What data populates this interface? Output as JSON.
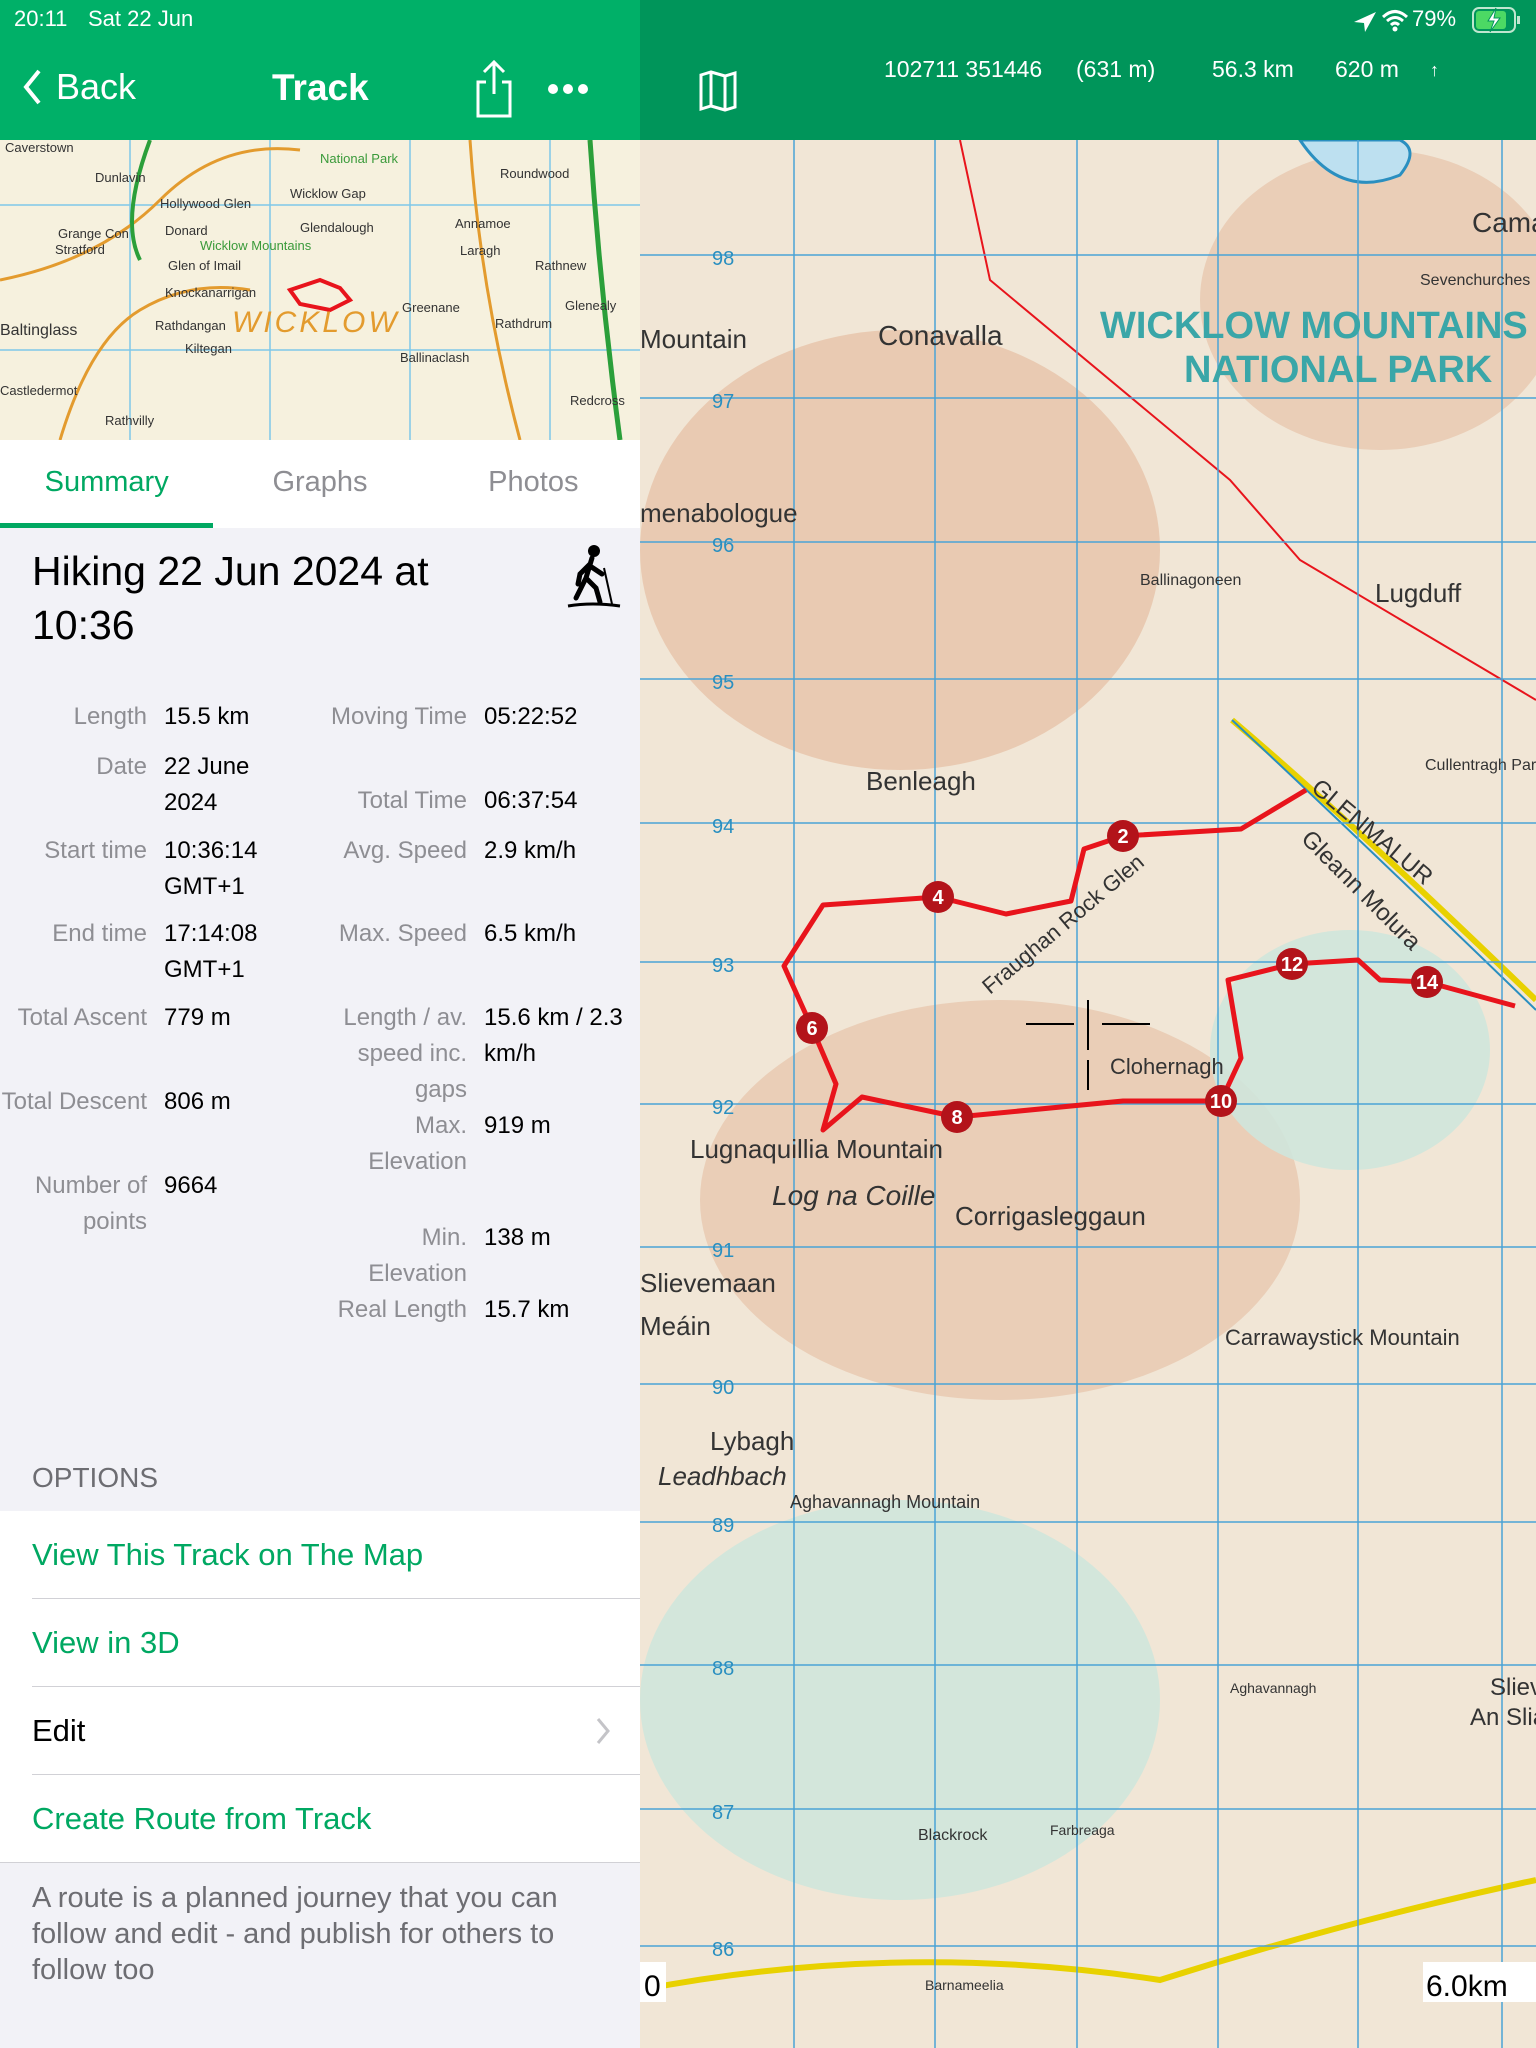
{
  "status": {
    "time": "20:11",
    "date": "Sat 22 Jun",
    "battery": "79%"
  },
  "nav": {
    "back": "Back",
    "title": "Track"
  },
  "map_header": {
    "coords": "102711 351446",
    "coords_elev": "(631 m)",
    "distance": "56.3 km",
    "elevation": "620 m"
  },
  "minimap": {
    "labels": [
      "Caverstown",
      "Dunlavin",
      "Hollywood Glen",
      "Donard",
      "Glen of Imail",
      "Knockanarrigan",
      "Stratford",
      "Grange Con",
      "Baltinglass",
      "Rathdangan",
      "Kiltegan",
      "Castledermot",
      "Rathvilly",
      "Wicklow Gap",
      "Glendalough",
      "Laragh",
      "Annamoe",
      "Roundwood",
      "Rathnew",
      "Glenealy",
      "Rathdrum",
      "Greenane",
      "Ballinaclash",
      "Redcross",
      "WICKLOW",
      "Wicklow Mountains",
      "National Park"
    ]
  },
  "tabs": [
    {
      "label": "Summary",
      "active": true
    },
    {
      "label": "Graphs",
      "active": false
    },
    {
      "label": "Photos",
      "active": false
    }
  ],
  "track": {
    "title": "Hiking 22 Jun 2024 at 10:36",
    "activity_icon": "hiking-icon"
  },
  "stats_left": [
    {
      "label": "Length",
      "value": "15.5 km"
    },
    {
      "label": "Date",
      "value": "22 June 2024"
    },
    {
      "label": "Start time",
      "value": "10:36:14 GMT+1"
    },
    {
      "label": "End time",
      "value": "17:14:08 GMT+1"
    },
    {
      "label": "Total Ascent",
      "value": "779 m"
    },
    {
      "label": "Total Descent",
      "value": "806 m"
    },
    {
      "label": "Number of points",
      "value": "9664"
    }
  ],
  "stats_right": [
    {
      "label": "Moving Time",
      "value": "05:22:52"
    },
    {
      "label": "Total Time",
      "value": "06:37:54"
    },
    {
      "label": "Avg. Speed",
      "value": "2.9 km/h"
    },
    {
      "label": "Max. Speed",
      "value": "6.5 km/h"
    },
    {
      "label": "Length / av. speed inc. gaps",
      "value": "15.6 km / 2.3 km/h"
    },
    {
      "label": "Max. Elevation",
      "value": "919 m"
    },
    {
      "label": "Min. Elevation",
      "value": "138 m"
    },
    {
      "label": "Real Length",
      "value": "15.7 km"
    }
  ],
  "options": {
    "header": "OPTIONS",
    "items": [
      {
        "label": "View This Track on The Map"
      },
      {
        "label": "View in 3D"
      },
      {
        "label": "Edit"
      },
      {
        "label": "Create Route from Track"
      }
    ],
    "footnote": "A route is a planned journey that you can follow and edit - and publish for others to follow too"
  },
  "map": {
    "grid_labels": [
      "98",
      "97",
      "96",
      "95",
      "94",
      "93",
      "92",
      "91",
      "90",
      "89",
      "88",
      "87",
      "86"
    ],
    "park_label": [
      "WICKLOW MOUNTAINS",
      "NATIONAL PARK"
    ],
    "places": [
      "Conavalla",
      "Mountain",
      "menabologue",
      "Benleagh",
      "Lugduff",
      "Ballinagoneen",
      "Lugnaquillia Mountain",
      "Log na Coille",
      "Corrigasleggaun",
      "Clohernagh",
      "Carrawaystick Mountain",
      "Lybagh",
      "Leadhbach",
      "Aghavannagh Mountain",
      "GLENMALUR",
      "Gleann Molura",
      "Fraughan Rock Glen",
      "Camad",
      "Sevenchurches",
      "Cullentragh Park",
      "Slievemaan",
      "Meáin",
      "Barnameelia",
      "Farbreaga",
      "Blackrock",
      "Slieve",
      "An Sliabh",
      "Aghavannagh"
    ],
    "markers": [
      "2",
      "4",
      "6",
      "8",
      "10",
      "12",
      "14"
    ],
    "scale_start": "0",
    "scale_end": "6.0km",
    "route_color": "#e8141c"
  }
}
